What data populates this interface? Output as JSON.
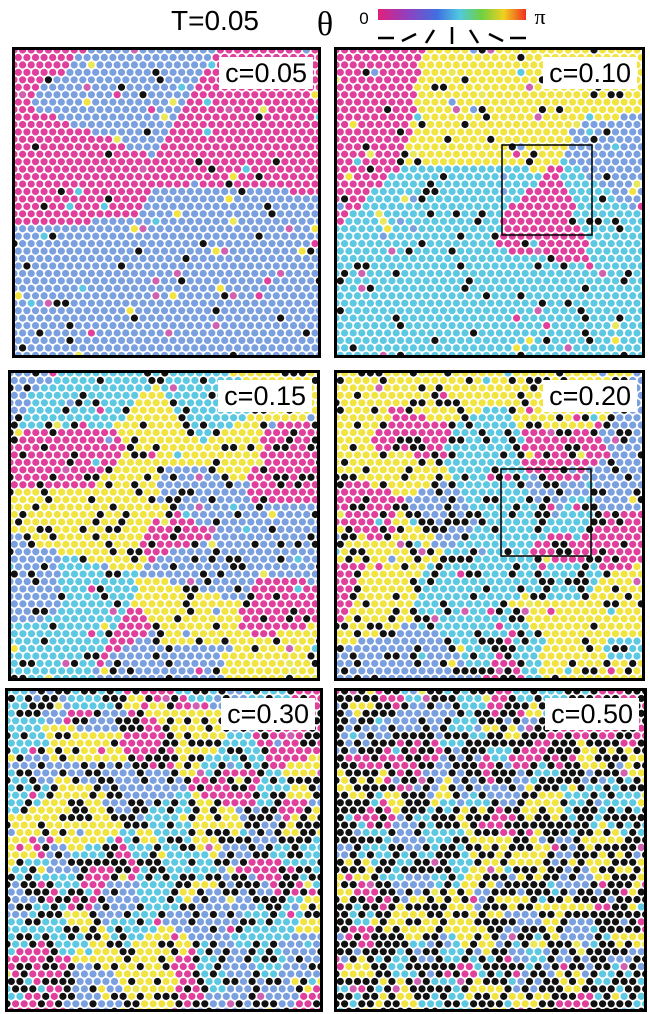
{
  "header": {
    "title": "T=0.05",
    "symbol": "θ",
    "scale_min": "0",
    "scale_max": "π"
  },
  "panels": [
    {
      "label": "c=0.05"
    },
    {
      "label": "c=0.10"
    },
    {
      "label": "c=0.15"
    },
    {
      "label": "c=0.20"
    },
    {
      "label": "c=0.30"
    },
    {
      "label": "c=0.50"
    }
  ]
}
